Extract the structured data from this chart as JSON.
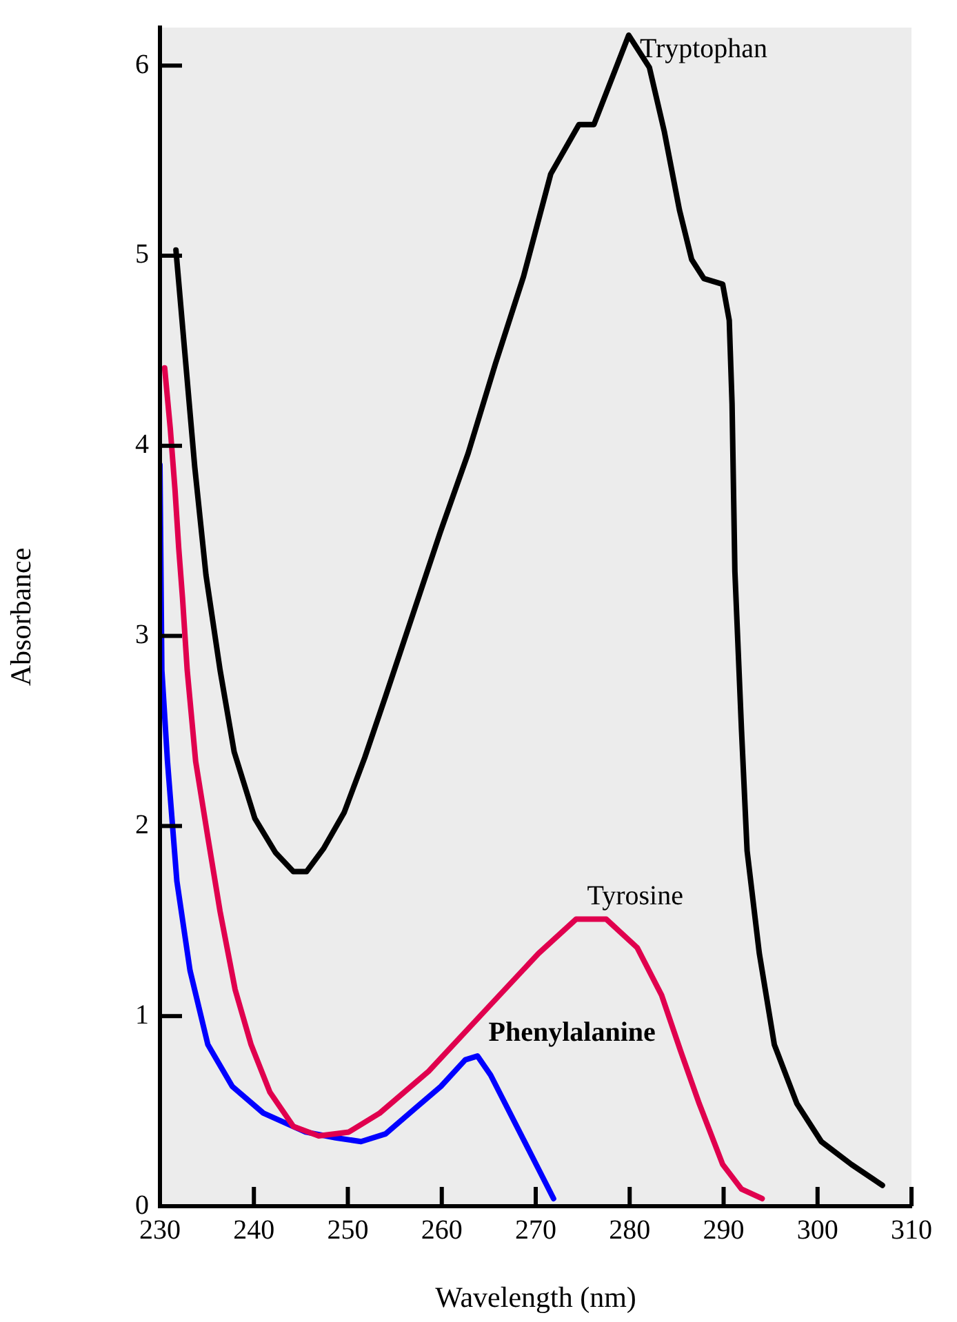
{
  "chart_data": {
    "type": "line",
    "xlabel": "Wavelength (nm)",
    "ylabel": "Absorbance",
    "xlim": [
      230,
      310
    ],
    "ylim": [
      0,
      6.2
    ],
    "xticks": [
      230,
      240,
      250,
      260,
      270,
      280,
      290,
      300,
      310
    ],
    "yticks": [
      0,
      1,
      2,
      3,
      4,
      5,
      6
    ],
    "grid": false,
    "legend": false,
    "marker": "none",
    "line_style": "solid",
    "series": [
      {
        "name": "Tryptophan",
        "color": "#000000",
        "x": [
          231.7,
          232.7,
          233.7,
          234.9,
          236.4,
          237.9,
          240.1,
          242.3,
          244.2,
          245.6,
          247.4,
          249.6,
          251.8,
          254.0,
          256.9,
          259.8,
          262.8,
          265.7,
          268.7,
          271.6,
          274.6,
          276.2,
          279.9,
          282.1,
          283.7,
          285.3,
          286.6,
          287.9,
          289.9,
          290.6,
          290.9,
          291.2,
          291.9,
          292.5,
          293.8,
          295.4,
          297.8,
          300.4,
          303.6,
          306.9
        ],
        "values": [
          5.03,
          4.46,
          3.89,
          3.32,
          2.82,
          2.39,
          2.04,
          1.86,
          1.76,
          1.76,
          1.88,
          2.07,
          2.36,
          2.68,
          3.11,
          3.54,
          3.96,
          4.43,
          4.89,
          5.43,
          5.69,
          5.69,
          6.16,
          5.99,
          5.65,
          5.24,
          4.98,
          4.88,
          4.85,
          4.66,
          4.22,
          3.34,
          2.51,
          1.87,
          1.33,
          0.85,
          0.54,
          0.34,
          0.22,
          0.11
        ]
      },
      {
        "name": "Tyrosine",
        "color": "#e0004e",
        "x": [
          230.5,
          231.1,
          231.6,
          232.0,
          232.4,
          232.9,
          233.8,
          235.1,
          236.4,
          238.0,
          239.7,
          241.7,
          244.2,
          246.9,
          250.1,
          253.4,
          258.6,
          265.2,
          270.3,
          274.3,
          277.5,
          280.8,
          283.4,
          285.4,
          287.4,
          289.9,
          291.9,
          294.1
        ],
        "values": [
          4.41,
          4.09,
          3.77,
          3.46,
          3.2,
          2.82,
          2.34,
          1.94,
          1.55,
          1.14,
          0.85,
          0.6,
          0.42,
          0.37,
          0.39,
          0.49,
          0.71,
          1.06,
          1.33,
          1.51,
          1.51,
          1.36,
          1.11,
          0.82,
          0.54,
          0.22,
          0.09,
          0.04
        ]
      },
      {
        "name": "Phenylalanine",
        "color": "#0000ff",
        "x": [
          230,
          230.2,
          230.8,
          231.8,
          233.2,
          235.1,
          237.7,
          241.0,
          245.5,
          248.7,
          251.4,
          254.0,
          257.3,
          259.9,
          262.5,
          263.8,
          265.2,
          271.9
        ],
        "values": [
          3.9,
          2.82,
          2.34,
          1.71,
          1.24,
          0.85,
          0.63,
          0.49,
          0.39,
          0.36,
          0.34,
          0.38,
          0.52,
          0.63,
          0.77,
          0.79,
          0.69,
          0.04
        ]
      }
    ]
  }
}
